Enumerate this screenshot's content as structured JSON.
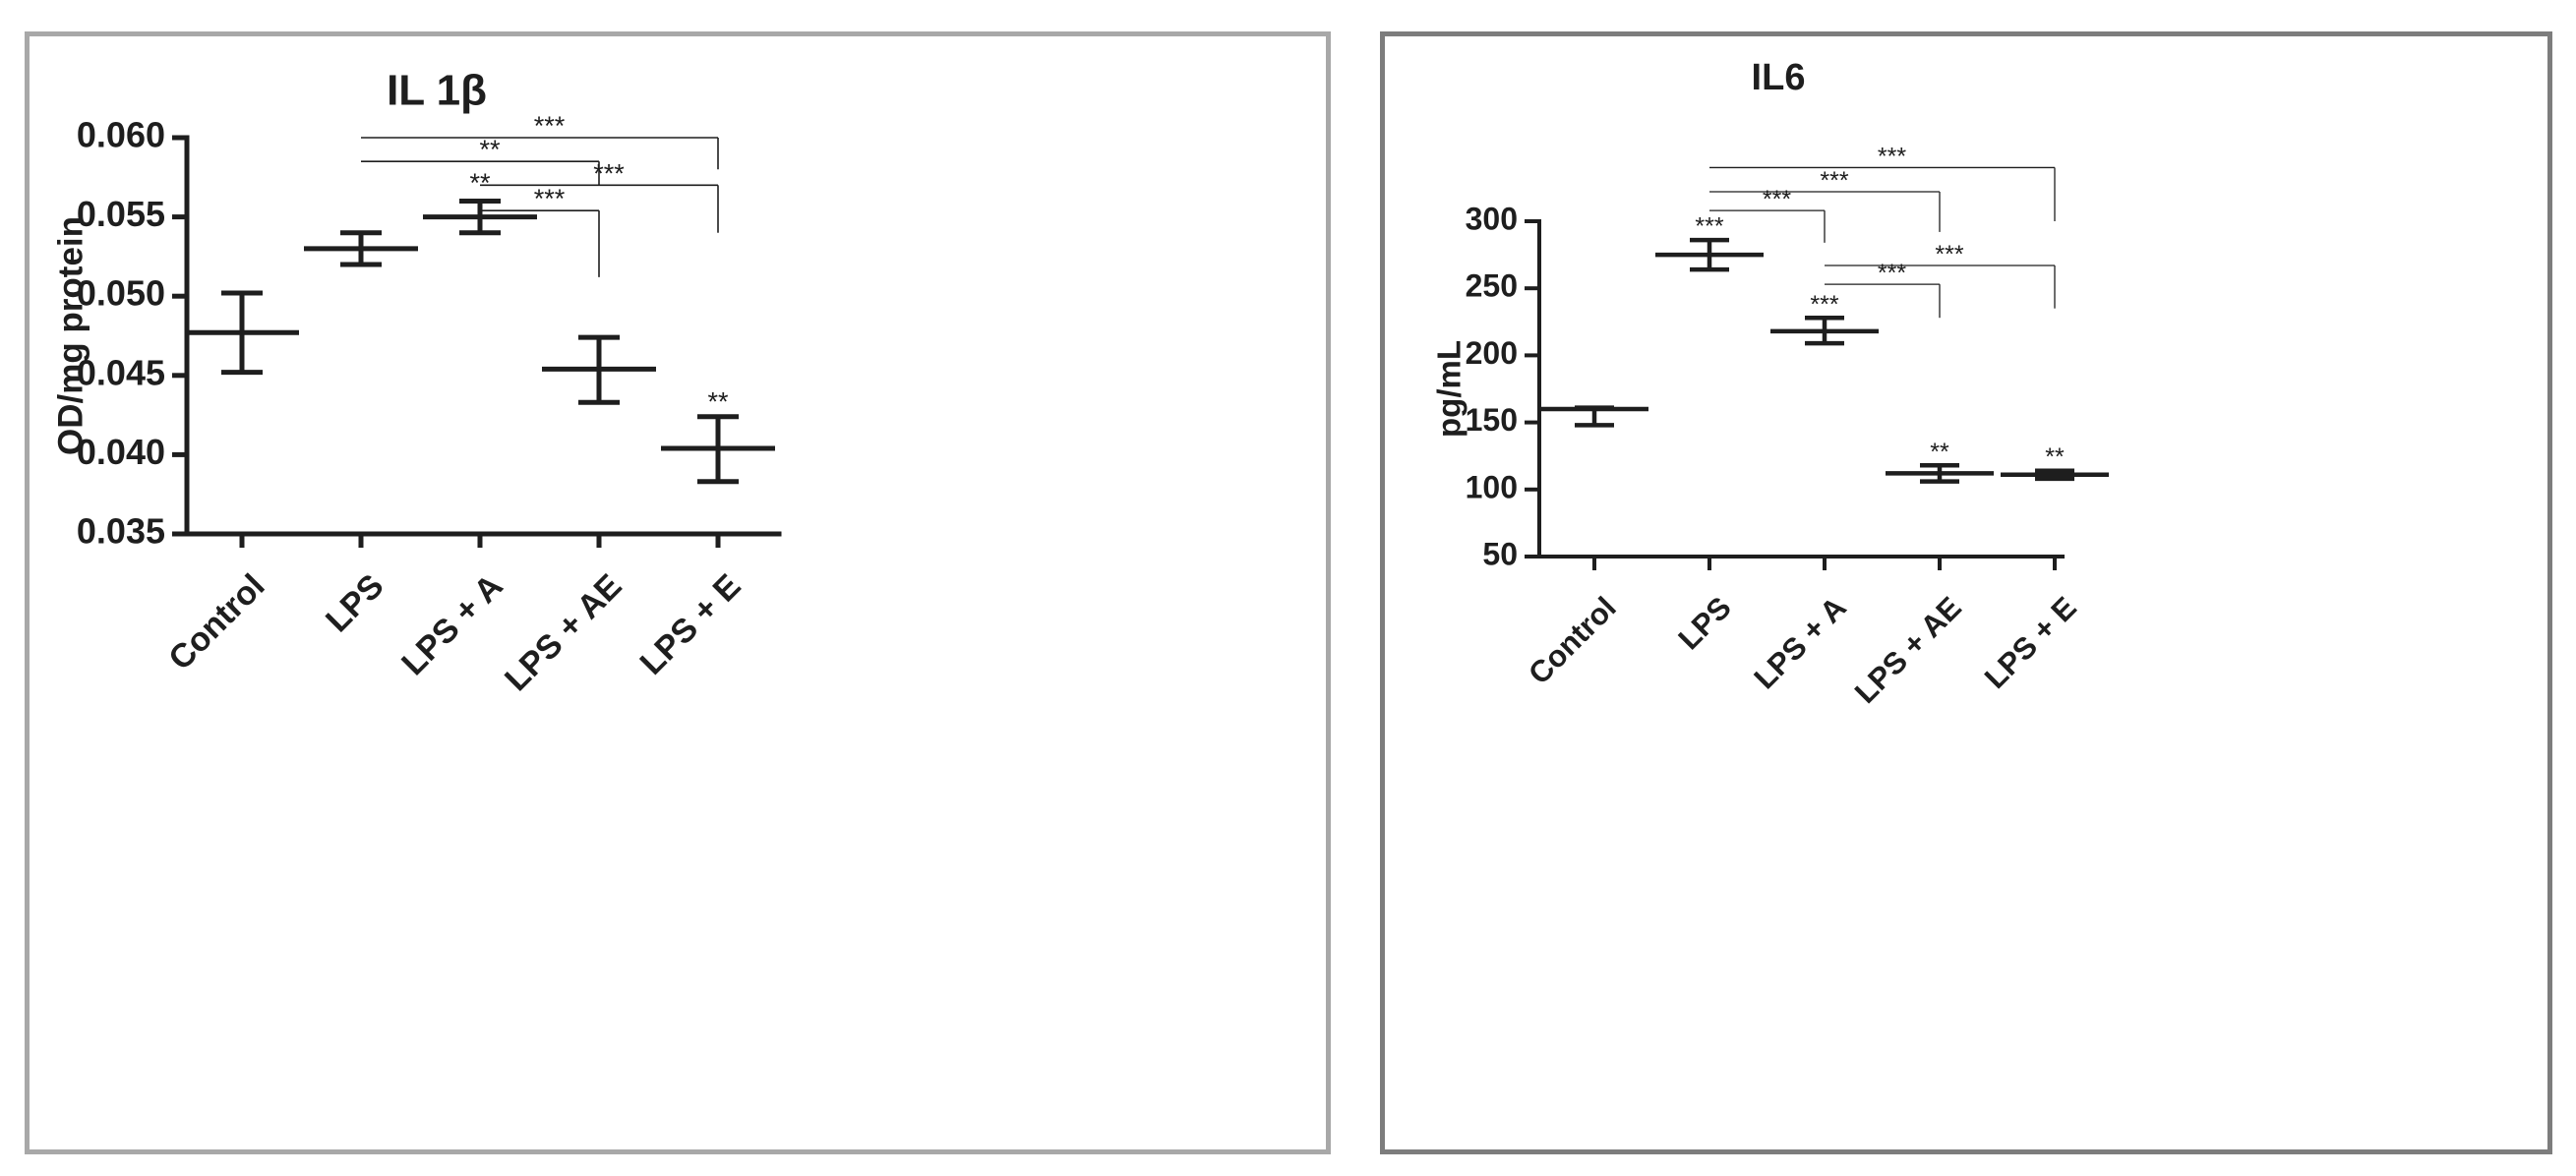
{
  "chart_data": [
    {
      "type": "scatter",
      "title": "IL 1β",
      "ylabel": "OD/mg protein",
      "xlabel": "",
      "categories": [
        "Control",
        "LPS",
        "LPS + A",
        "LPS + AE",
        "LPS + E"
      ],
      "ylim": [
        0.035,
        0.06
      ],
      "yticks": [
        0.035,
        0.04,
        0.045,
        0.05,
        0.055,
        0.06
      ],
      "ytick_labels": [
        "0.035",
        "0.040",
        "0.045",
        "0.050",
        "0.055",
        "0.060"
      ],
      "grid": false,
      "series": [
        {
          "mean": [
            0.0477,
            0.053,
            0.055,
            0.0454,
            0.0404
          ],
          "upper": [
            0.0502,
            0.054,
            0.056,
            0.0474,
            0.0424
          ],
          "lower": [
            0.0452,
            0.052,
            0.054,
            0.0433,
            0.0383
          ]
        }
      ],
      "point_annotations": [
        {
          "category": "LPS + A",
          "text": "**",
          "y": 0.0566
        },
        {
          "category": "LPS + E",
          "text": "**",
          "y": 0.0428
        }
      ],
      "comparisons": [
        {
          "from": "LPS",
          "to": "LPS + E",
          "text": "***",
          "y": 0.06,
          "drop_to": 0.058
        },
        {
          "from": "LPS",
          "to": "LPS + AE",
          "text": "**",
          "y": 0.0585,
          "drop_to": 0.057
        },
        {
          "from": "LPS + A",
          "to": "LPS + E",
          "text": "***",
          "y": 0.057,
          "drop_to": 0.054
        },
        {
          "from": "LPS + A",
          "to": "LPS + AE",
          "text": "***",
          "y": 0.0554,
          "drop_to": 0.0512
        }
      ]
    },
    {
      "type": "scatter",
      "title": "IL6",
      "ylabel": "pg/mL",
      "xlabel": "",
      "categories": [
        "Control",
        "LPS",
        "LPS + A",
        "LPS + AE",
        "LPS + E"
      ],
      "ylim": [
        50,
        300
      ],
      "yticks": [
        50,
        100,
        150,
        200,
        250,
        300
      ],
      "ytick_labels": [
        "50",
        "100",
        "150",
        "200",
        "250",
        "300"
      ],
      "grid": false,
      "series": [
        {
          "mean": [
            160,
            275,
            218,
            112,
            111
          ],
          "upper": [
            161,
            286,
            228,
            118,
            114
          ],
          "lower": [
            148,
            264,
            209,
            106,
            108
          ]
        }
      ],
      "point_annotations": [
        {
          "category": "LPS",
          "text": "***",
          "y": 290
        },
        {
          "category": "LPS + A",
          "text": "***",
          "y": 232
        },
        {
          "category": "LPS + AE",
          "text": "**",
          "y": 122
        },
        {
          "category": "LPS + E",
          "text": "**",
          "y": 118
        }
      ],
      "comparisons": [
        {
          "from": "LPS",
          "to": "LPS + E",
          "text": "***",
          "y": 340,
          "drop_to": 300
        },
        {
          "from": "LPS",
          "to": "LPS + AE",
          "text": "***",
          "y": 322,
          "drop_to": 292
        },
        {
          "from": "LPS",
          "to": "LPS + A",
          "text": "***",
          "y": 308,
          "drop_to": 284
        },
        {
          "from": "LPS + A",
          "to": "LPS + E",
          "text": "***",
          "y": 267,
          "drop_to": 235
        },
        {
          "from": "LPS + A",
          "to": "LPS + AE",
          "text": "***",
          "y": 253,
          "drop_to": 228
        }
      ]
    }
  ]
}
